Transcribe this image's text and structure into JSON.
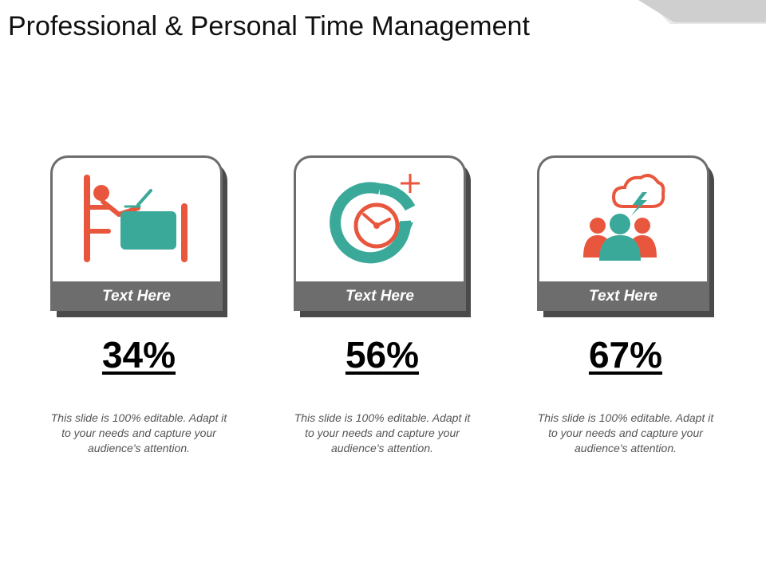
{
  "slide": {
    "title": "Professional & Personal Time Management"
  },
  "colors": {
    "accent_orange": "#e8573d",
    "accent_teal": "#3aa99a",
    "card_gray": "#6d6d6d",
    "shadow_gray": "#4a4a4a"
  },
  "cards": [
    {
      "label": "Text Here",
      "percent": "34%",
      "description": "This slide is 100% editable. Adapt it to your needs and capture your audience's attention.",
      "icon": "person-at-desk-icon"
    },
    {
      "label": "Text Here",
      "percent": "56%",
      "description": "This slide is 100% editable. Adapt it to your needs and capture your audience's attention.",
      "icon": "clock-cycle-icon"
    },
    {
      "label": "Text Here",
      "percent": "67%",
      "description": "This slide is 100% editable. Adapt it to your needs and capture your audience's attention.",
      "icon": "team-brainstorm-icon"
    }
  ]
}
